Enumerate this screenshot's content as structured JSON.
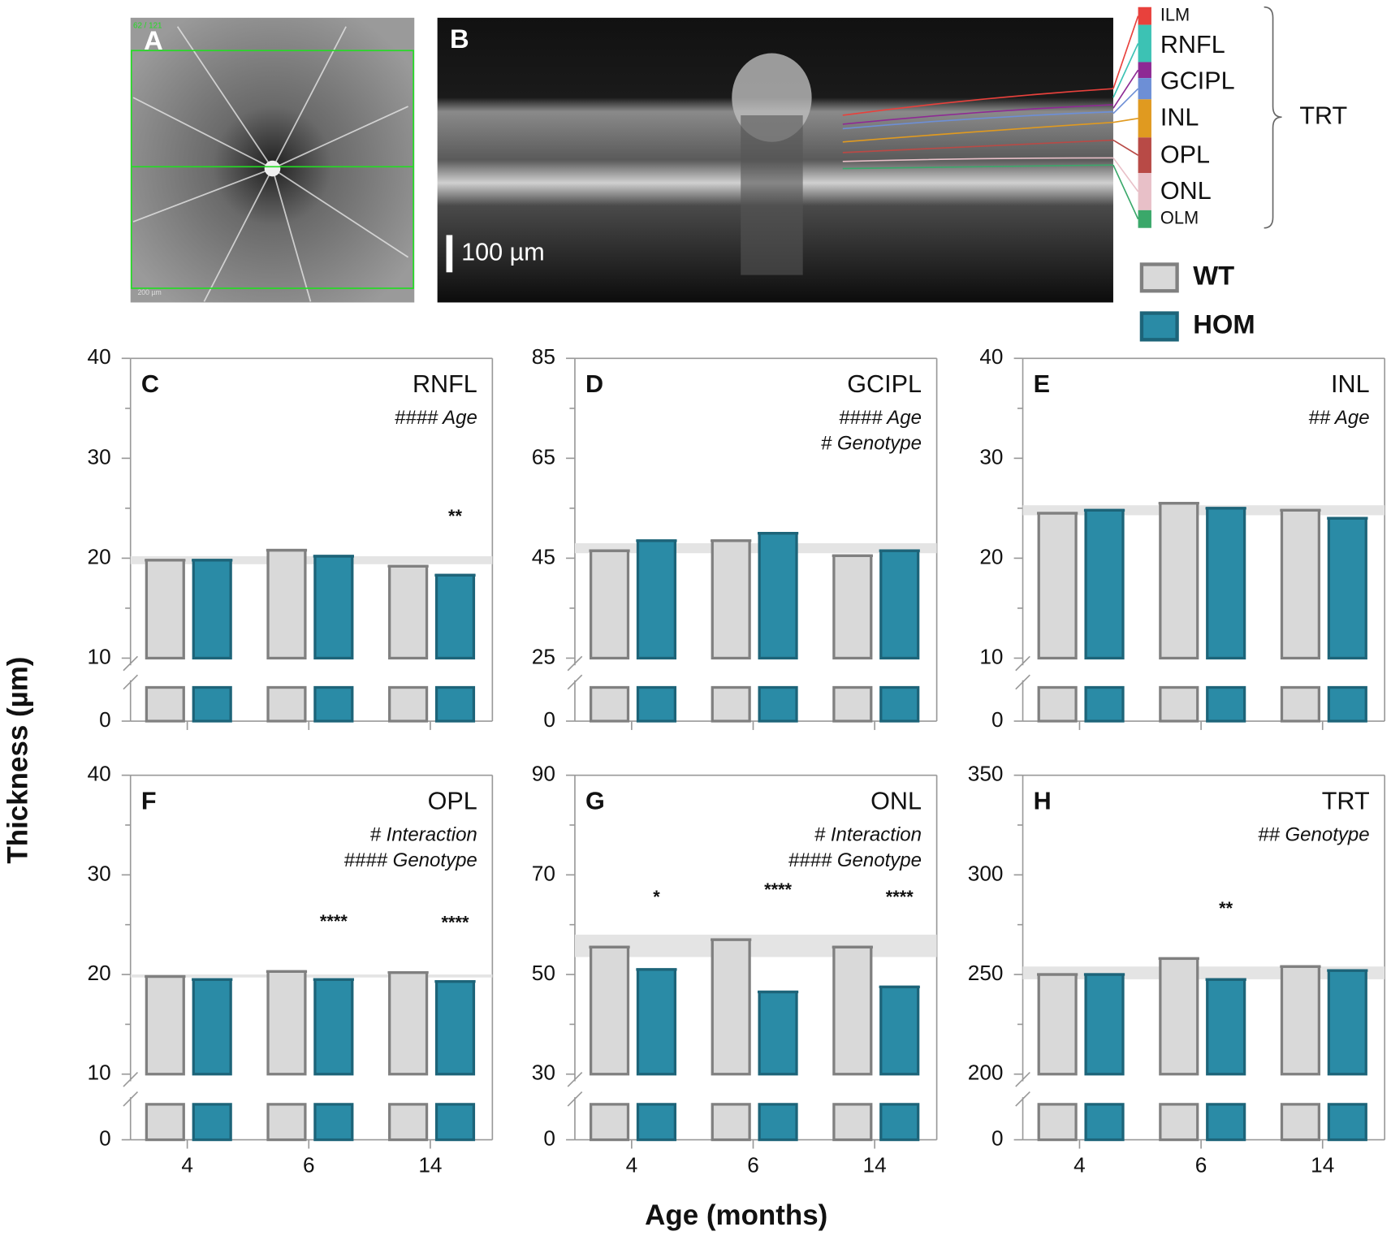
{
  "figure": {
    "image_a": {
      "letter": "A",
      "counter": "62 / 121",
      "scale": "200 µm"
    },
    "image_b": {
      "letter": "B",
      "scale": "100 µm"
    },
    "layers": [
      {
        "name": "ILM",
        "color": "#e8413c"
      },
      {
        "name": "RNFL",
        "color": "#3cc2b4"
      },
      {
        "name": "GCIPL",
        "color": "#8e2a94"
      },
      {
        "name": null,
        "color": "#6d8fd6"
      },
      {
        "name": "INL",
        "color": "#e09a20"
      },
      {
        "name": "OPL",
        "color": "#b84a46"
      },
      {
        "name": "ONL",
        "color": "#e8c0c8"
      },
      {
        "name": "OLM",
        "color": "#3aa86a"
      }
    ],
    "brace_label": "TRT",
    "y_axis_label": "Thickness (µm)",
    "x_axis_label": "Age (months)"
  },
  "chart_data": [
    {
      "type": "bar",
      "panel": "C",
      "title": "RNFL",
      "stats": [
        "#### Age"
      ],
      "show_category_labels": false,
      "categories": [
        "4",
        "6",
        "14"
      ],
      "series": [
        {
          "name": "WT",
          "color": "#d9d9d9",
          "stroke": "#808080",
          "values": [
            19.8,
            20.8,
            19.2
          ]
        },
        {
          "name": "HOM",
          "color": "#2a8ba6",
          "stroke": "#1d6479",
          "values": [
            19.8,
            20.2,
            18.3
          ]
        }
      ],
      "ylim": [
        0,
        40
      ],
      "ybreak": 10,
      "yticks": [
        0,
        10,
        20,
        30,
        40
      ],
      "band": [
        19.4,
        20.2
      ],
      "significance": [
        null,
        null,
        "**"
      ]
    },
    {
      "type": "bar",
      "panel": "D",
      "title": "GCIPL",
      "stats": [
        "#### Age",
        "# Genotype"
      ],
      "show_category_labels": false,
      "categories": [
        "4",
        "6",
        "14"
      ],
      "series": [
        {
          "name": "WT",
          "color": "#d9d9d9",
          "stroke": "#808080",
          "values": [
            46.5,
            48.5,
            45.5
          ]
        },
        {
          "name": "HOM",
          "color": "#2a8ba6",
          "stroke": "#1d6479",
          "values": [
            48.5,
            50,
            46.5
          ]
        }
      ],
      "ylim": [
        0,
        85
      ],
      "ybreak": 25,
      "yticks": [
        0,
        25,
        45,
        65,
        85
      ],
      "band": [
        46,
        48
      ],
      "significance": [
        null,
        null,
        null
      ]
    },
    {
      "type": "bar",
      "panel": "E",
      "title": "INL",
      "stats": [
        "## Age"
      ],
      "show_category_labels": false,
      "categories": [
        "4",
        "6",
        "14"
      ],
      "series": [
        {
          "name": "WT",
          "color": "#d9d9d9",
          "stroke": "#808080",
          "values": [
            24.5,
            25.5,
            24.8
          ]
        },
        {
          "name": "HOM",
          "color": "#2a8ba6",
          "stroke": "#1d6479",
          "values": [
            24.8,
            25,
            24
          ]
        }
      ],
      "ylim": [
        0,
        40
      ],
      "ybreak": 10,
      "yticks": [
        0,
        10,
        20,
        30,
        40
      ],
      "band": [
        24.3,
        25.3
      ],
      "significance": [
        null,
        null,
        null
      ]
    },
    {
      "type": "bar",
      "panel": "F",
      "title": "OPL",
      "stats": [
        "# Interaction",
        "#### Genotype"
      ],
      "show_category_labels": true,
      "categories": [
        "4",
        "6",
        "14"
      ],
      "series": [
        {
          "name": "WT",
          "color": "#d9d9d9",
          "stroke": "#808080",
          "values": [
            19.8,
            20.3,
            20.2
          ]
        },
        {
          "name": "HOM",
          "color": "#2a8ba6",
          "stroke": "#1d6479",
          "values": [
            19.5,
            19.5,
            19.3
          ]
        }
      ],
      "ylim": [
        0,
        40
      ],
      "ybreak": 10,
      "yticks": [
        0,
        10,
        20,
        30,
        40
      ],
      "band": [
        19.7,
        20
      ],
      "significance": [
        null,
        "****",
        "****"
      ]
    },
    {
      "type": "bar",
      "panel": "G",
      "title": "ONL",
      "stats": [
        "# Interaction",
        "#### Genotype"
      ],
      "show_category_labels": true,
      "categories": [
        "4",
        "6",
        "14"
      ],
      "series": [
        {
          "name": "WT",
          "color": "#d9d9d9",
          "stroke": "#808080",
          "values": [
            55.5,
            57,
            55.5
          ]
        },
        {
          "name": "HOM",
          "color": "#2a8ba6",
          "stroke": "#1d6479",
          "values": [
            51,
            46.5,
            47.5
          ]
        }
      ],
      "ylim": [
        0,
        90
      ],
      "ybreak": 30,
      "yticks": [
        0,
        30,
        50,
        70,
        90
      ],
      "band": [
        53.5,
        58
      ],
      "significance": [
        "*",
        "****",
        "****"
      ]
    },
    {
      "type": "bar",
      "panel": "H",
      "title": "TRT",
      "stats": [
        "## Genotype"
      ],
      "show_category_labels": true,
      "categories": [
        "4",
        "6",
        "14"
      ],
      "series": [
        {
          "name": "WT",
          "color": "#d9d9d9",
          "stroke": "#808080",
          "values": [
            250,
            258,
            254
          ]
        },
        {
          "name": "HOM",
          "color": "#2a8ba6",
          "stroke": "#1d6479",
          "values": [
            250,
            247.5,
            252
          ]
        }
      ],
      "ylim": [
        0,
        350
      ],
      "ybreak": 200,
      "yticks": [
        0,
        200,
        250,
        300,
        350
      ],
      "band": [
        247.6,
        254
      ],
      "significance": [
        null,
        "**",
        null
      ]
    }
  ]
}
